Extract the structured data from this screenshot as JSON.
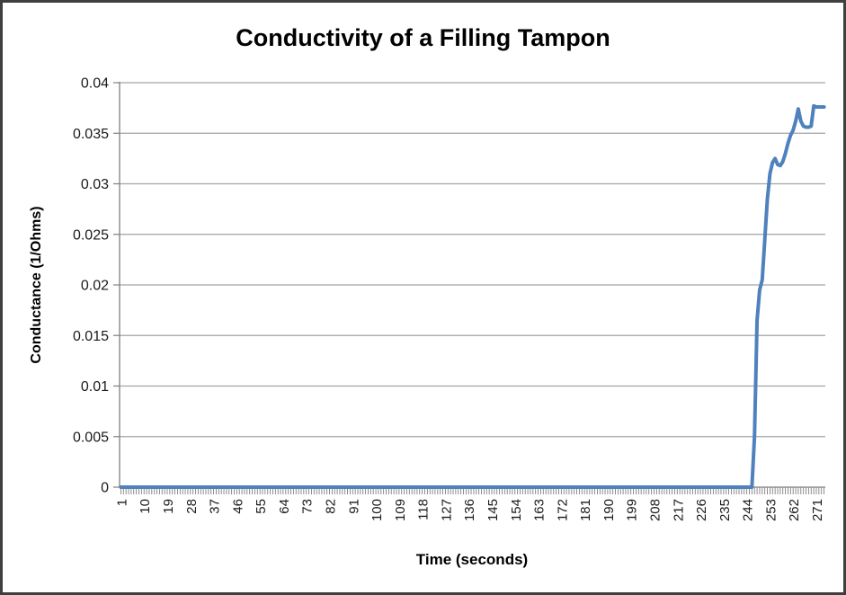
{
  "chart_data": {
    "type": "line",
    "title": "Conductivity of a Filling Tampon",
    "xlabel": "Time (seconds)",
    "ylabel": "Conductance (1/Ohms)",
    "ylim": [
      0,
      0.04
    ],
    "ytick_interval": 0.005,
    "ytick_labels": [
      "0",
      "0.005",
      "0.01",
      "0.015",
      "0.02",
      "0.025",
      "0.03",
      "0.035",
      "0.04"
    ],
    "xtick_start": 1,
    "xtick_step": 9,
    "xtick_labels": [
      "1",
      "10",
      "19",
      "28",
      "37",
      "46",
      "55",
      "64",
      "73",
      "82",
      "91",
      "100",
      "109",
      "118",
      "127",
      "136",
      "145",
      "154",
      "163",
      "172",
      "181",
      "190",
      "199",
      "208",
      "217",
      "226",
      "235",
      "244",
      "253",
      "262",
      "271"
    ],
    "x_categories": 274,
    "grid": "horizontal-only",
    "legend": "none",
    "series": [
      {
        "name": "Conductance",
        "points": [
          [
            1,
            0
          ],
          [
            240,
            0
          ],
          [
            246,
            0
          ],
          [
            247,
            0.005
          ],
          [
            248,
            0.0165
          ],
          [
            249,
            0.0195
          ],
          [
            250,
            0.0205
          ],
          [
            251,
            0.0245
          ],
          [
            252,
            0.0285
          ],
          [
            253,
            0.031
          ],
          [
            254,
            0.0321
          ],
          [
            255,
            0.0325
          ],
          [
            256,
            0.0319
          ],
          [
            257,
            0.0318
          ],
          [
            258,
            0.0322
          ],
          [
            259,
            0.033
          ],
          [
            260,
            0.034
          ],
          [
            261,
            0.0348
          ],
          [
            262,
            0.0353
          ],
          [
            263,
            0.0362
          ],
          [
            264,
            0.0374
          ],
          [
            265,
            0.0362
          ],
          [
            266,
            0.0357
          ],
          [
            267,
            0.0356
          ],
          [
            268,
            0.0356
          ],
          [
            269,
            0.0357
          ],
          [
            270,
            0.0377
          ],
          [
            271,
            0.0376
          ],
          [
            274,
            0.0376
          ]
        ]
      }
    ],
    "colors": {
      "line": "#4F81BD",
      "gridline": "#A3A3A3",
      "axis": "#808080",
      "tick": "#808080",
      "text": "#1A1A1A",
      "background": "#FFFFFF",
      "frame_border": "#3F3F3F"
    }
  }
}
